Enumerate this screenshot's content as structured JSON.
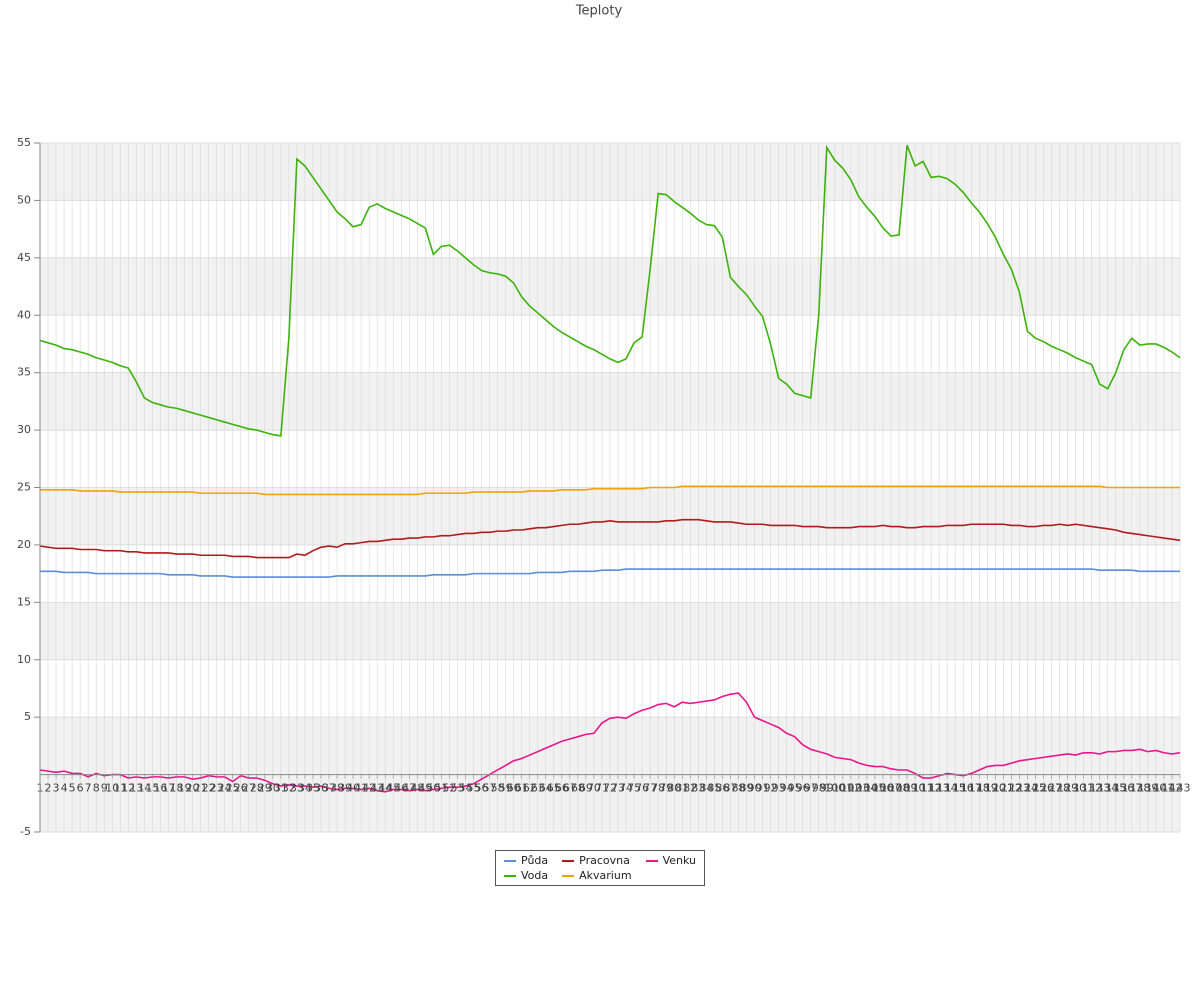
{
  "chart_data": {
    "type": "line",
    "title": "Teploty",
    "categories": [
      1,
      2,
      3,
      4,
      5,
      6,
      7,
      8,
      9,
      10,
      11,
      12,
      13,
      14,
      15,
      16,
      17,
      18,
      19,
      20,
      21,
      22,
      23,
      24,
      25,
      26,
      27,
      28,
      29,
      30,
      31,
      32,
      33,
      34,
      35,
      36,
      37,
      38,
      39,
      40,
      41,
      42,
      43,
      44,
      45,
      46,
      47,
      48,
      49,
      50,
      51,
      52,
      53,
      54,
      55,
      56,
      57,
      58,
      59,
      60,
      61,
      62,
      63,
      64,
      65,
      66,
      67,
      68,
      69,
      70,
      71,
      72,
      73,
      74,
      75,
      76,
      77,
      78,
      79,
      80,
      81,
      82,
      83,
      84,
      85,
      86,
      87,
      88,
      89,
      90,
      91,
      92,
      93,
      94,
      95,
      96,
      97,
      98,
      99,
      100,
      101,
      102,
      103,
      104,
      105,
      106,
      107,
      108,
      109,
      110,
      111,
      112,
      113,
      114,
      115,
      116,
      117,
      118,
      119,
      120,
      121,
      122,
      123,
      124,
      125,
      126,
      127,
      128,
      129,
      130,
      131,
      132,
      133,
      134,
      135,
      136,
      137,
      138,
      139,
      140,
      141,
      142,
      143
    ],
    "series": [
      {
        "name": "Půda",
        "color": "#5b8dd9",
        "values": [
          17.7,
          17.7,
          17.7,
          17.6,
          17.6,
          17.6,
          17.6,
          17.5,
          17.5,
          17.5,
          17.5,
          17.5,
          17.5,
          17.5,
          17.5,
          17.5,
          17.4,
          17.4,
          17.4,
          17.4,
          17.3,
          17.3,
          17.3,
          17.3,
          17.2,
          17.2,
          17.2,
          17.2,
          17.2,
          17.2,
          17.2,
          17.2,
          17.2,
          17.2,
          17.2,
          17.2,
          17.2,
          17.3,
          17.3,
          17.3,
          17.3,
          17.3,
          17.3,
          17.3,
          17.3,
          17.3,
          17.3,
          17.3,
          17.3,
          17.4,
          17.4,
          17.4,
          17.4,
          17.4,
          17.5,
          17.5,
          17.5,
          17.5,
          17.5,
          17.5,
          17.5,
          17.5,
          17.6,
          17.6,
          17.6,
          17.6,
          17.7,
          17.7,
          17.7,
          17.7,
          17.8,
          17.8,
          17.8,
          17.9,
          17.9,
          17.9,
          17.9,
          17.9,
          17.9,
          17.9,
          17.9,
          17.9,
          17.9,
          17.9,
          17.9,
          17.9,
          17.9,
          17.9,
          17.9,
          17.9,
          17.9,
          17.9,
          17.9,
          17.9,
          17.9,
          17.9,
          17.9,
          17.9,
          17.9,
          17.9,
          17.9,
          17.9,
          17.9,
          17.9,
          17.9,
          17.9,
          17.9,
          17.9,
          17.9,
          17.9,
          17.9,
          17.9,
          17.9,
          17.9,
          17.9,
          17.9,
          17.9,
          17.9,
          17.9,
          17.9,
          17.9,
          17.9,
          17.9,
          17.9,
          17.9,
          17.9,
          17.9,
          17.9,
          17.9,
          17.9,
          17.9,
          17.9,
          17.8,
          17.8,
          17.8,
          17.8,
          17.8,
          17.7,
          17.7,
          17.7,
          17.7,
          17.7,
          17.7
        ]
      },
      {
        "name": "Voda",
        "color": "#3cb30a",
        "values": [
          37.8,
          37.6,
          37.4,
          37.1,
          37.0,
          36.8,
          36.6,
          36.3,
          36.1,
          35.9,
          35.6,
          35.4,
          34.2,
          32.8,
          32.4,
          32.2,
          32.0,
          31.9,
          31.7,
          31.5,
          31.3,
          31.1,
          30.9,
          30.7,
          30.5,
          30.3,
          30.1,
          30.0,
          29.8,
          29.6,
          29.5,
          38.0,
          53.6,
          53.0,
          52.0,
          51.0,
          50.0,
          49.0,
          48.4,
          47.7,
          47.9,
          49.4,
          49.7,
          49.3,
          49.0,
          48.7,
          48.4,
          48.0,
          47.6,
          45.3,
          46.0,
          46.1,
          45.6,
          45.0,
          44.4,
          43.9,
          43.7,
          43.6,
          43.4,
          42.8,
          41.6,
          40.8,
          40.2,
          39.6,
          39.0,
          38.5,
          38.1,
          37.7,
          37.3,
          37.0,
          36.6,
          36.2,
          35.9,
          36.2,
          37.6,
          38.1,
          44.0,
          50.6,
          50.5,
          49.9,
          49.4,
          48.9,
          48.3,
          47.9,
          47.8,
          46.8,
          43.3,
          42.5,
          41.8,
          40.8,
          39.9,
          37.5,
          34.5,
          34.0,
          33.2,
          33.0,
          32.8,
          40.0,
          54.6,
          53.5,
          52.8,
          51.8,
          50.3,
          49.4,
          48.6,
          47.6,
          46.9,
          47.0,
          54.8,
          53.0,
          53.4,
          52.0,
          52.1,
          51.9,
          51.4,
          50.7,
          49.8,
          49.0,
          48.0,
          46.8,
          45.3,
          44.0,
          42.0,
          38.6,
          38.0,
          37.7,
          37.3,
          37.0,
          36.7,
          36.3,
          36.0,
          35.7,
          34.0,
          33.6,
          35.0,
          37.0,
          38.0,
          37.4,
          37.5,
          37.5,
          37.2,
          36.8,
          36.3
        ]
      },
      {
        "name": "Pracovna",
        "color": "#b01c1c",
        "values": [
          19.9,
          19.8,
          19.7,
          19.7,
          19.7,
          19.6,
          19.6,
          19.6,
          19.5,
          19.5,
          19.5,
          19.4,
          19.4,
          19.3,
          19.3,
          19.3,
          19.3,
          19.2,
          19.2,
          19.2,
          19.1,
          19.1,
          19.1,
          19.1,
          19.0,
          19.0,
          19.0,
          18.9,
          18.9,
          18.9,
          18.9,
          18.9,
          19.2,
          19.1,
          19.5,
          19.8,
          19.9,
          19.8,
          20.1,
          20.1,
          20.2,
          20.3,
          20.3,
          20.4,
          20.5,
          20.5,
          20.6,
          20.6,
          20.7,
          20.7,
          20.8,
          20.8,
          20.9,
          21.0,
          21.0,
          21.1,
          21.1,
          21.2,
          21.2,
          21.3,
          21.3,
          21.4,
          21.5,
          21.5,
          21.6,
          21.7,
          21.8,
          21.8,
          21.9,
          22.0,
          22.0,
          22.1,
          22.0,
          22.0,
          22.0,
          22.0,
          22.0,
          22.0,
          22.1,
          22.1,
          22.2,
          22.2,
          22.2,
          22.1,
          22.0,
          22.0,
          22.0,
          21.9,
          21.8,
          21.8,
          21.8,
          21.7,
          21.7,
          21.7,
          21.7,
          21.6,
          21.6,
          21.6,
          21.5,
          21.5,
          21.5,
          21.5,
          21.6,
          21.6,
          21.6,
          21.7,
          21.6,
          21.6,
          21.5,
          21.5,
          21.6,
          21.6,
          21.6,
          21.7,
          21.7,
          21.7,
          21.8,
          21.8,
          21.8,
          21.8,
          21.8,
          21.7,
          21.7,
          21.6,
          21.6,
          21.7,
          21.7,
          21.8,
          21.7,
          21.8,
          21.7,
          21.6,
          21.5,
          21.4,
          21.3,
          21.1,
          21.0,
          20.9,
          20.8,
          20.7,
          20.6,
          20.5,
          20.4
        ]
      },
      {
        "name": "Akvarium",
        "color": "#f0a30a",
        "values": [
          24.8,
          24.8,
          24.8,
          24.8,
          24.8,
          24.7,
          24.7,
          24.7,
          24.7,
          24.7,
          24.6,
          24.6,
          24.6,
          24.6,
          24.6,
          24.6,
          24.6,
          24.6,
          24.6,
          24.6,
          24.5,
          24.5,
          24.5,
          24.5,
          24.5,
          24.5,
          24.5,
          24.5,
          24.4,
          24.4,
          24.4,
          24.4,
          24.4,
          24.4,
          24.4,
          24.4,
          24.4,
          24.4,
          24.4,
          24.4,
          24.4,
          24.4,
          24.4,
          24.4,
          24.4,
          24.4,
          24.4,
          24.4,
          24.5,
          24.5,
          24.5,
          24.5,
          24.5,
          24.5,
          24.6,
          24.6,
          24.6,
          24.6,
          24.6,
          24.6,
          24.6,
          24.7,
          24.7,
          24.7,
          24.7,
          24.8,
          24.8,
          24.8,
          24.8,
          24.9,
          24.9,
          24.9,
          24.9,
          24.9,
          24.9,
          24.9,
          25.0,
          25.0,
          25.0,
          25.0,
          25.1,
          25.1,
          25.1,
          25.1,
          25.1,
          25.1,
          25.1,
          25.1,
          25.1,
          25.1,
          25.1,
          25.1,
          25.1,
          25.1,
          25.1,
          25.1,
          25.1,
          25.1,
          25.1,
          25.1,
          25.1,
          25.1,
          25.1,
          25.1,
          25.1,
          25.1,
          25.1,
          25.1,
          25.1,
          25.1,
          25.1,
          25.1,
          25.1,
          25.1,
          25.1,
          25.1,
          25.1,
          25.1,
          25.1,
          25.1,
          25.1,
          25.1,
          25.1,
          25.1,
          25.1,
          25.1,
          25.1,
          25.1,
          25.1,
          25.1,
          25.1,
          25.1,
          25.1,
          25.0,
          25.0,
          25.0,
          25.0,
          25.0,
          25.0,
          25.0,
          25.0,
          25.0,
          25.0
        ]
      },
      {
        "name": "Venku",
        "color": "#e8178a",
        "values": [
          0.4,
          0.3,
          0.2,
          0.3,
          0.1,
          0.1,
          -0.2,
          0.1,
          -0.1,
          0.0,
          0.0,
          -0.3,
          -0.2,
          -0.3,
          -0.2,
          -0.2,
          -0.3,
          -0.2,
          -0.2,
          -0.4,
          -0.3,
          -0.1,
          -0.2,
          -0.2,
          -0.6,
          -0.1,
          -0.3,
          -0.3,
          -0.5,
          -0.8,
          -1.0,
          -0.9,
          -1.0,
          -1.0,
          -1.1,
          -1.0,
          -1.2,
          -1.3,
          -1.2,
          -1.2,
          -1.3,
          -1.2,
          -1.4,
          -1.5,
          -1.3,
          -1.3,
          -1.4,
          -1.3,
          -1.4,
          -1.3,
          -1.2,
          -1.1,
          -1.1,
          -1.0,
          -0.8,
          -0.4,
          0.0,
          0.4,
          0.8,
          1.2,
          1.4,
          1.7,
          2.0,
          2.3,
          2.6,
          2.9,
          3.1,
          3.3,
          3.5,
          3.6,
          4.5,
          4.9,
          5.0,
          4.9,
          5.3,
          5.6,
          5.8,
          6.1,
          6.2,
          5.9,
          6.3,
          6.2,
          6.3,
          6.4,
          6.5,
          6.8,
          7.0,
          7.1,
          6.3,
          5.0,
          4.7,
          4.4,
          4.1,
          3.6,
          3.3,
          2.6,
          2.2,
          2.0,
          1.8,
          1.5,
          1.4,
          1.3,
          1.0,
          0.8,
          0.7,
          0.7,
          0.5,
          0.4,
          0.4,
          0.1,
          -0.3,
          -0.3,
          -0.1,
          0.1,
          0.0,
          -0.1,
          0.1,
          0.4,
          0.7,
          0.8,
          0.8,
          1.0,
          1.2,
          1.3,
          1.4,
          1.5,
          1.6,
          1.7,
          1.8,
          1.7,
          1.9,
          1.9,
          1.8,
          2.0,
          2.0,
          2.1,
          2.1,
          2.2,
          2.0,
          2.1,
          1.9,
          1.8,
          1.9
        ]
      }
    ],
    "ylim": [
      -5,
      55
    ],
    "yticks": [
      -5,
      5,
      10,
      15,
      20,
      25,
      30,
      35,
      40,
      45,
      50,
      55
    ],
    "grid": true
  }
}
